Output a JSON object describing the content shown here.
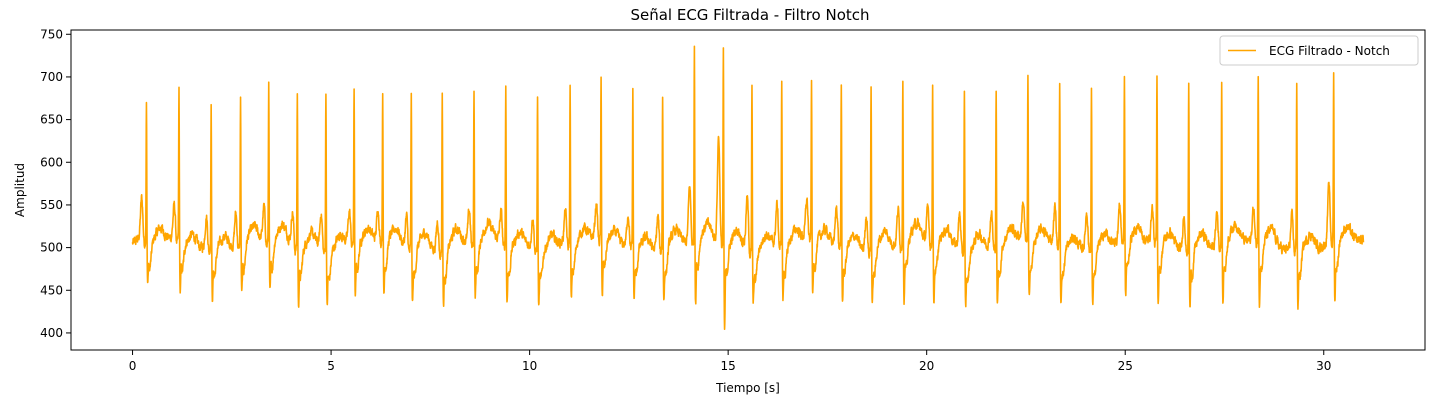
{
  "chart_data": {
    "type": "line",
    "title": "Señal ECG Filtrada - Filtro Notch",
    "xlabel": "Tiempo [s]",
    "ylabel": "Amplitud",
    "xlim": [
      -1.55,
      32.55
    ],
    "ylim": [
      380,
      755
    ],
    "xticks": [
      0,
      5,
      10,
      15,
      20,
      25,
      30
    ],
    "yticks": [
      400,
      450,
      500,
      550,
      600,
      650,
      700,
      750
    ],
    "grid": false,
    "legend_position": "top-right",
    "series": [
      {
        "name": "ECG Filtrado - Notch",
        "color": "#FFA500",
        "duration": 31.0,
        "baseline": 505,
        "beats": [
          {
            "t": 0.35,
            "peak": 670,
            "trough": 450,
            "twave": 562
          },
          {
            "t": 1.17,
            "peak": 687,
            "trough": 440,
            "twave": 553
          },
          {
            "t": 1.98,
            "peak": 678,
            "trough": 440,
            "twave": 550
          },
          {
            "t": 2.72,
            "peak": 679,
            "trough": 440,
            "twave": 553
          },
          {
            "t": 3.43,
            "peak": 696,
            "trough": 438,
            "twave": 555
          },
          {
            "t": 4.15,
            "peak": 692,
            "trough": 435,
            "twave": 552
          },
          {
            "t": 4.87,
            "peak": 697,
            "trough": 435,
            "twave": 553
          },
          {
            "t": 5.58,
            "peak": 691,
            "trough": 435,
            "twave": 550
          },
          {
            "t": 6.3,
            "peak": 684,
            "trough": 434,
            "twave": 549
          },
          {
            "t": 7.02,
            "peak": 686,
            "trough": 434,
            "twave": 550
          },
          {
            "t": 7.8,
            "peak": 696,
            "trough": 436,
            "twave": 549
          },
          {
            "t": 8.6,
            "peak": 693,
            "trough": 437,
            "twave": 552
          },
          {
            "t": 9.4,
            "peak": 697,
            "trough": 434,
            "twave": 548
          },
          {
            "t": 10.2,
            "peak": 692,
            "trough": 434,
            "twave": 548
          },
          {
            "t": 11.02,
            "peak": 693,
            "trough": 432,
            "twave": 550
          },
          {
            "t": 11.8,
            "peak": 695,
            "trough": 434,
            "twave": 552
          },
          {
            "t": 12.6,
            "peak": 692,
            "trough": 438,
            "twave": 550
          },
          {
            "t": 13.35,
            "peak": 689,
            "trough": 436,
            "twave": 552
          },
          {
            "t": 14.15,
            "peak": 741,
            "trough": 425,
            "twave": 580
          },
          {
            "t": 14.88,
            "peak": 738,
            "trough": 400,
            "twave": 640
          },
          {
            "t": 15.6,
            "peak": 704,
            "trough": 438,
            "twave": 573
          },
          {
            "t": 16.35,
            "peak": 703,
            "trough": 436,
            "twave": 560
          },
          {
            "t": 17.1,
            "peak": 699,
            "trough": 434,
            "twave": 558
          },
          {
            "t": 17.85,
            "peak": 693,
            "trough": 432,
            "twave": 557
          },
          {
            "t": 18.6,
            "peak": 703,
            "trough": 434,
            "twave": 556
          },
          {
            "t": 19.4,
            "peak": 703,
            "trough": 432,
            "twave": 555
          },
          {
            "t": 20.15,
            "peak": 699,
            "trough": 432,
            "twave": 554
          },
          {
            "t": 20.95,
            "peak": 700,
            "trough": 433,
            "twave": 554
          },
          {
            "t": 21.75,
            "peak": 695,
            "trough": 431,
            "twave": 553
          },
          {
            "t": 22.55,
            "peak": 700,
            "trough": 431,
            "twave": 556
          },
          {
            "t": 23.35,
            "peak": 698,
            "trough": 433,
            "twave": 555
          },
          {
            "t": 24.15,
            "peak": 693,
            "trough": 430,
            "twave": 555
          },
          {
            "t": 24.98,
            "peak": 697,
            "trough": 431,
            "twave": 555
          },
          {
            "t": 25.8,
            "peak": 701,
            "trough": 430,
            "twave": 553
          },
          {
            "t": 26.6,
            "peak": 704,
            "trough": 430,
            "twave": 556
          },
          {
            "t": 27.43,
            "peak": 701,
            "trough": 428,
            "twave": 554
          },
          {
            "t": 28.35,
            "peak": 703,
            "trough": 428,
            "twave": 553
          },
          {
            "t": 29.32,
            "peak": 708,
            "trough": 430,
            "twave": 552
          },
          {
            "t": 30.25,
            "peak": 704,
            "trough": 430,
            "twave": 580
          }
        ]
      }
    ]
  }
}
